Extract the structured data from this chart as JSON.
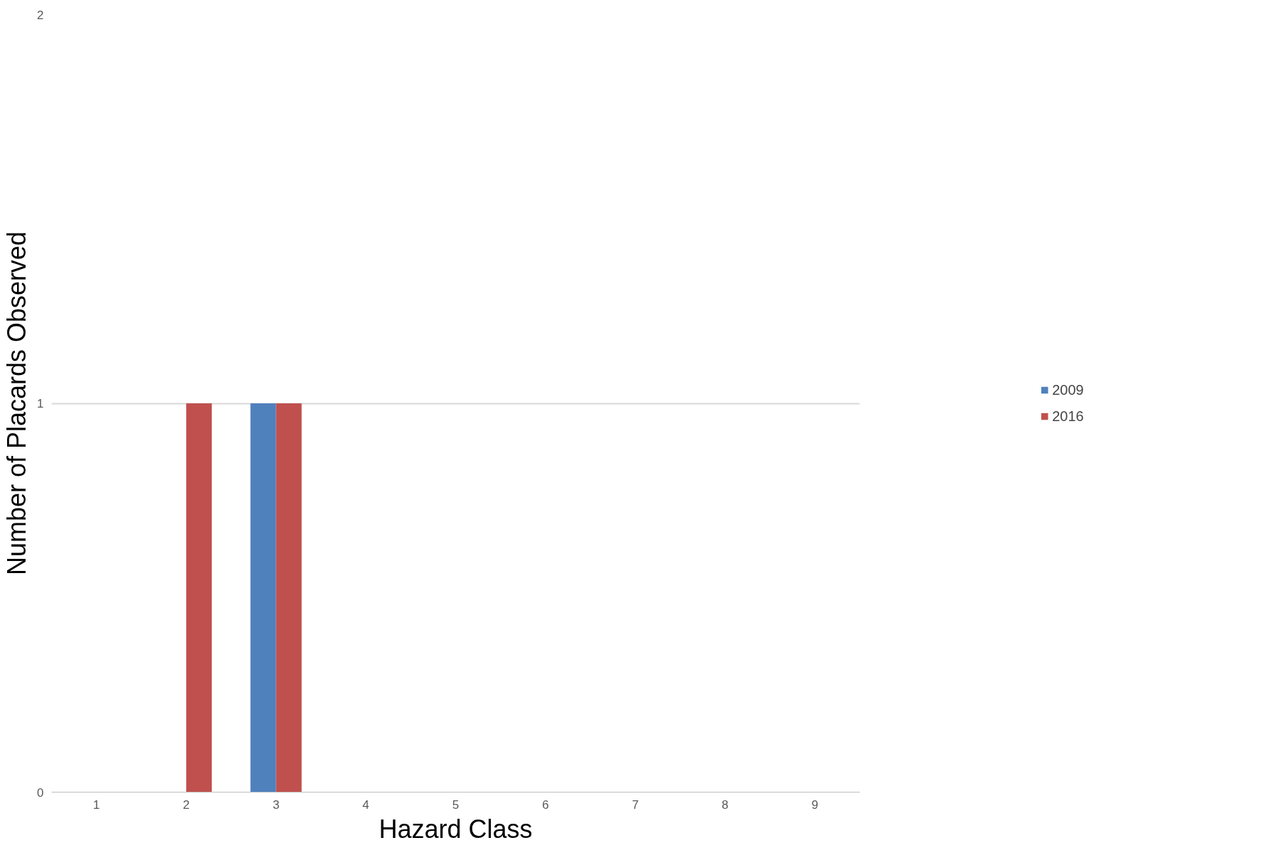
{
  "chart_data": {
    "type": "bar",
    "xlabel": "Hazard Class",
    "ylabel": "Number of Placards Observed",
    "categories": [
      "1",
      "2",
      "3",
      "4",
      "5",
      "6",
      "7",
      "8",
      "9"
    ],
    "series": [
      {
        "name": "2009",
        "color": "#4f81bd",
        "values": [
          0,
          0,
          1,
          0,
          0,
          0,
          0,
          0,
          0
        ]
      },
      {
        "name": "2016",
        "color": "#c0504d",
        "values": [
          0,
          1,
          1,
          0,
          0,
          0,
          0,
          0,
          0
        ]
      }
    ],
    "ylim": [
      0,
      2
    ],
    "yticks": [
      0,
      1,
      2
    ],
    "grid": "y",
    "legend": "right"
  }
}
